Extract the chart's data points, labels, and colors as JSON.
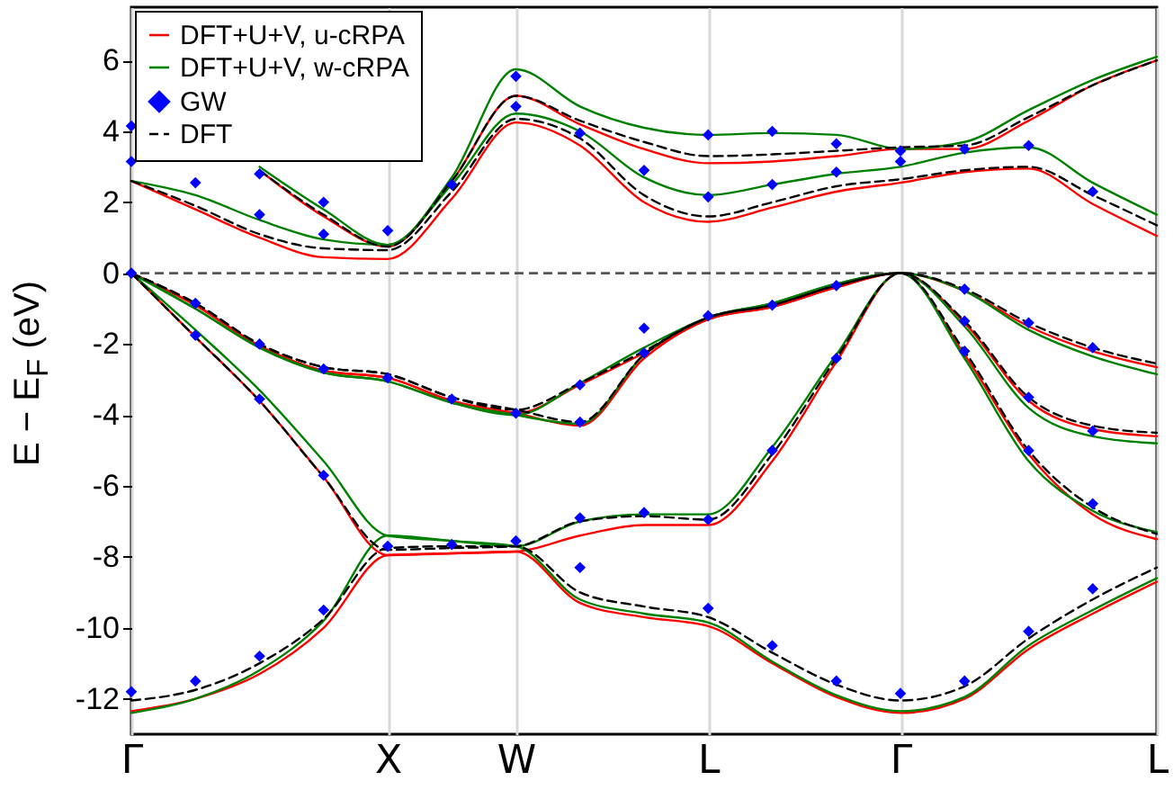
{
  "chart_data": {
    "type": "line",
    "ylabel": "E − E$_{F}$ (eV)",
    "categories": [
      "Γ",
      null,
      null,
      null,
      "X",
      null,
      "W",
      null,
      null,
      "L",
      null,
      null,
      "Γ",
      null,
      null,
      null,
      "L"
    ],
    "ylim": [
      -13,
      7.5
    ],
    "yticks": [
      -12,
      -10,
      -8,
      -6,
      -4,
      -2,
      0,
      2,
      4,
      6
    ],
    "grid": "x",
    "legend": "top left",
    "ref_lines": [
      {
        "axis": "y",
        "value": 0,
        "color": "#555555",
        "line_style": "dashed"
      }
    ],
    "series": [
      {
        "name": "DFT+U+V, u-cRPA",
        "color": "#ff0000",
        "values": [
          -12.35,
          -12.0,
          -11.3,
          -10.0,
          -7.95,
          -7.9,
          -7.85,
          -9.3,
          -9.7,
          -9.95,
          -11.0,
          -11.95,
          -12.4,
          -12.0,
          -10.6,
          -9.6,
          -8.7
        ]
      },
      {
        "color": "#ff0000",
        "values": [
          0,
          -1.8,
          -3.6,
          -5.75,
          -7.95,
          -7.9,
          -7.85,
          -7.4,
          -7.1,
          -7.1,
          -5.3,
          -2.5,
          0,
          -2.3,
          -5.1,
          -6.8,
          -7.5
        ]
      },
      {
        "color": "#ff0000",
        "values": [
          0,
          -0.9,
          -2.05,
          -2.75,
          -2.95,
          -3.6,
          -3.95,
          -4.3,
          -2.4,
          -1.3,
          -0.95,
          -0.4,
          0,
          -0.5,
          -1.5,
          -2.2,
          -2.65
        ]
      },
      {
        "color": "#ff0000",
        "values": [
          0,
          -0.9,
          -2.05,
          -2.75,
          -2.95,
          -3.6,
          -3.95,
          -3.15,
          -2.25,
          -1.3,
          -0.95,
          -0.4,
          0,
          -1.4,
          -3.6,
          -4.4,
          -4.6
        ]
      },
      {
        "color": "#ff0000",
        "values": [
          2.6,
          1.8,
          1.0,
          0.45,
          0.4,
          2.1,
          4.25,
          3.6,
          2.0,
          1.45,
          1.85,
          2.3,
          2.55,
          2.85,
          2.95,
          1.95,
          1.05
        ]
      },
      {
        "color": "#ff0000",
        "values": [
          null,
          null,
          2.9,
          1.6,
          0.75,
          2.6,
          5.0,
          4.2,
          3.5,
          3.1,
          3.15,
          3.3,
          3.5,
          3.5,
          4.3,
          5.3,
          6.0
        ]
      },
      {
        "name": "DFT+U+V, w-cRPA",
        "color": "#008000",
        "values": [
          -12.4,
          -12.0,
          -11.2,
          -9.8,
          -7.4,
          -7.55,
          -7.7,
          -9.2,
          -9.6,
          -9.85,
          -10.95,
          -11.9,
          -12.35,
          -11.95,
          -10.5,
          -9.5,
          -8.6
        ]
      },
      {
        "color": "#008000",
        "values": [
          0,
          -1.6,
          -3.3,
          -5.3,
          -7.4,
          -7.55,
          -7.7,
          -7.0,
          -6.8,
          -6.8,
          -4.9,
          -2.3,
          0,
          -2.4,
          -5.3,
          -6.7,
          -7.3
        ]
      },
      {
        "color": "#008000",
        "values": [
          0,
          -1.0,
          -2.1,
          -2.8,
          -3.05,
          -3.65,
          -4.0,
          -4.25,
          -2.3,
          -1.25,
          -0.85,
          -0.3,
          0,
          -0.5,
          -1.6,
          -2.35,
          -2.85
        ]
      },
      {
        "color": "#008000",
        "values": [
          0,
          -1.0,
          -2.1,
          -2.8,
          -3.05,
          -3.65,
          -4.0,
          -3.1,
          -2.1,
          -1.25,
          -0.85,
          -0.3,
          0,
          -1.5,
          -3.8,
          -4.6,
          -4.8
        ]
      },
      {
        "color": "#008000",
        "values": [
          2.6,
          2.2,
          1.5,
          0.95,
          0.8,
          2.5,
          4.5,
          4.0,
          2.7,
          2.2,
          2.5,
          2.8,
          3.0,
          3.4,
          3.55,
          2.55,
          1.65
        ]
      },
      {
        "color": "#008000",
        "values": [
          null,
          null,
          3.0,
          1.8,
          0.8,
          2.7,
          5.75,
          4.7,
          4.1,
          3.9,
          3.95,
          3.9,
          3.5,
          3.7,
          4.6,
          5.45,
          6.1
        ]
      },
      {
        "name": "GW",
        "type": "scatter",
        "marker": "diamond",
        "color": "#0000ff",
        "values": [
          -11.8,
          -11.5,
          -10.8,
          -9.5,
          -7.7,
          -7.65,
          -7.55,
          -8.3,
          null,
          -9.45,
          -10.5,
          -11.5,
          -11.85,
          -11.5,
          -10.1,
          -8.9,
          null
        ]
      },
      {
        "type": "scatter",
        "marker": "diamond",
        "color": "#0000ff",
        "values": [
          null,
          -1.75,
          -3.55,
          -5.7,
          null,
          null,
          null,
          -6.9,
          -6.75,
          -6.95,
          -5.0,
          -2.4,
          null,
          -2.2,
          -5.0,
          -6.5,
          null
        ]
      },
      {
        "type": "scatter",
        "marker": "diamond",
        "color": "#0000ff",
        "values": [
          0,
          -0.85,
          -2.0,
          -2.7,
          -2.95,
          -3.55,
          -3.95,
          -4.2,
          -2.25,
          -1.2,
          -0.9,
          -0.35,
          null,
          -0.45,
          -1.4,
          -2.1,
          null
        ]
      },
      {
        "type": "scatter",
        "marker": "diamond",
        "color": "#0000ff",
        "values": [
          null,
          null,
          null,
          null,
          null,
          null,
          null,
          -3.15,
          -1.55,
          null,
          null,
          null,
          null,
          -1.35,
          -3.5,
          -4.45,
          null
        ]
      },
      {
        "type": "scatter",
        "marker": "diamond",
        "color": "#0000ff",
        "values": [
          3.15,
          2.55,
          1.65,
          1.1,
          1.2,
          2.5,
          4.7,
          3.95,
          2.9,
          2.15,
          2.5,
          2.85,
          3.15,
          3.5,
          3.6,
          2.3,
          null
        ]
      },
      {
        "type": "scatter",
        "marker": "diamond",
        "color": "#0000ff",
        "values": [
          4.15,
          null,
          2.8,
          2.0,
          null,
          null,
          5.55,
          null,
          null,
          3.9,
          4.0,
          3.65,
          3.45,
          null,
          null,
          null,
          null
        ]
      },
      {
        "name": "DFT",
        "color": "#000000",
        "line_style": "dashed",
        "values": [
          -12.05,
          -11.75,
          -11.0,
          -9.75,
          -7.75,
          -7.7,
          -7.7,
          -9.0,
          -9.4,
          -9.7,
          -10.7,
          -11.6,
          -12.05,
          -11.65,
          -10.3,
          -9.2,
          -8.3
        ]
      },
      {
        "color": "#000000",
        "line_style": "dashed",
        "values": [
          0,
          -1.8,
          -3.6,
          -5.75,
          -7.8,
          -7.75,
          -7.7,
          -7.0,
          -6.85,
          -6.95,
          -5.1,
          -2.4,
          0,
          -2.2,
          -5.0,
          -6.6,
          -7.35
        ]
      },
      {
        "color": "#000000",
        "line_style": "dashed",
        "values": [
          0,
          -0.85,
          -2.0,
          -2.65,
          -2.85,
          -3.5,
          -3.85,
          -4.2,
          -2.3,
          -1.25,
          -0.9,
          -0.35,
          0,
          -0.45,
          -1.4,
          -2.1,
          -2.55
        ]
      },
      {
        "color": "#000000",
        "line_style": "dashed",
        "values": [
          0,
          -0.85,
          -2.0,
          -2.65,
          -2.85,
          -3.5,
          -3.85,
          -3.1,
          -2.2,
          -1.25,
          -0.9,
          -0.35,
          0,
          -1.35,
          -3.5,
          -4.3,
          -4.5
        ]
      },
      {
        "color": "#000000",
        "line_style": "dashed",
        "values": [
          2.6,
          1.9,
          1.1,
          0.7,
          0.65,
          2.3,
          4.35,
          3.8,
          2.2,
          1.6,
          2.0,
          2.45,
          2.65,
          2.9,
          3.0,
          2.2,
          1.35
        ]
      },
      {
        "color": "#000000",
        "line_style": "dashed",
        "values": [
          null,
          null,
          2.9,
          1.65,
          0.75,
          2.6,
          5.0,
          4.3,
          3.7,
          3.3,
          3.35,
          3.45,
          3.55,
          3.6,
          4.4,
          5.3,
          6.0
        ]
      }
    ]
  }
}
